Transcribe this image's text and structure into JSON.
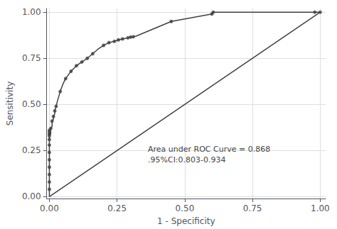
{
  "chart_data": {
    "type": "line",
    "xlabel": "1 - Specificity",
    "ylabel": "Sensitivity",
    "annotation": [
      "Area under ROC Curve = 0.868",
      ".95%CI:0.803-0.934"
    ],
    "xlim": [
      -0.01,
      1.02
    ],
    "ylim": [
      -0.01,
      1.02
    ],
    "xticks": [
      {
        "value": 0.0,
        "label": "0.00"
      },
      {
        "value": 0.25,
        "label": "0.25"
      },
      {
        "value": 0.5,
        "label": "0.50"
      },
      {
        "value": 0.75,
        "label": "0.75"
      },
      {
        "value": 1.0,
        "label": "1.00"
      }
    ],
    "yticks": [
      {
        "value": 0.0,
        "label": "0.00"
      },
      {
        "value": 0.25,
        "label": "0.25"
      },
      {
        "value": 0.5,
        "label": "0.50"
      },
      {
        "value": 0.75,
        "label": "0.75"
      },
      {
        "value": 1.0,
        "label": "1.00"
      }
    ],
    "grid": true,
    "series": [
      {
        "type": "line",
        "color": "#404040",
        "x": [
          0,
          1
        ],
        "values": [
          0,
          1
        ]
      },
      {
        "type": "line",
        "color": "#404040",
        "x": [
          0.0,
          0.0,
          0.0,
          0.0,
          0.0,
          0.0,
          0.0,
          0.0,
          0.0,
          0.0,
          0.0,
          0.0,
          0.0,
          0.0,
          0.0,
          0.0,
          0.0,
          0.0,
          0.0,
          0.0,
          0.005,
          0.005,
          0.005,
          0.005,
          0.01,
          0.01,
          0.01,
          0.015,
          0.015,
          0.02,
          0.02,
          0.025,
          0.03,
          0.035,
          0.04,
          0.05,
          0.06,
          0.07,
          0.08,
          0.1,
          0.12,
          0.14,
          0.16,
          0.18,
          0.2,
          0.22,
          0.24,
          0.255,
          0.27,
          0.28,
          0.29,
          0.295,
          0.3,
          0.31,
          0.32,
          0.45,
          0.6,
          0.605,
          0.98,
          1.0
        ],
        "values": [
          0.0,
          0.02,
          0.04,
          0.06,
          0.08,
          0.1,
          0.12,
          0.14,
          0.16,
          0.18,
          0.2,
          0.22,
          0.24,
          0.26,
          0.28,
          0.3,
          0.31,
          0.32,
          0.33,
          0.34,
          0.34,
          0.35,
          0.36,
          0.37,
          0.38,
          0.395,
          0.41,
          0.42,
          0.435,
          0.45,
          0.465,
          0.49,
          0.52,
          0.545,
          0.57,
          0.61,
          0.64,
          0.66,
          0.68,
          0.71,
          0.73,
          0.75,
          0.775,
          0.8,
          0.82,
          0.835,
          0.842,
          0.85,
          0.855,
          0.858,
          0.861,
          0.863,
          0.865,
          0.867,
          0.87,
          0.95,
          0.99,
          1.0,
          1.0,
          1.0
        ]
      },
      {
        "type": "scatter",
        "color": "#404040",
        "x": [
          0.0,
          0.0,
          0.0,
          0.0,
          0.0,
          0.0,
          0.0,
          0.0,
          0.0,
          0.0,
          0.0,
          0.0,
          0.005,
          0.01,
          0.015,
          0.02,
          0.025,
          0.04,
          0.06,
          0.08,
          0.1,
          0.12,
          0.14,
          0.16,
          0.2,
          0.22,
          0.24,
          0.255,
          0.27,
          0.29,
          0.3,
          0.31,
          0.45,
          0.6,
          0.605,
          0.98,
          1.0
        ],
        "values": [
          0.04,
          0.08,
          0.12,
          0.16,
          0.2,
          0.24,
          0.28,
          0.31,
          0.33,
          0.34,
          0.35,
          0.36,
          0.37,
          0.41,
          0.435,
          0.465,
          0.49,
          0.57,
          0.64,
          0.68,
          0.71,
          0.73,
          0.75,
          0.775,
          0.82,
          0.835,
          0.842,
          0.85,
          0.855,
          0.861,
          0.865,
          0.867,
          0.95,
          0.99,
          1.0,
          1.0,
          1.0
        ]
      }
    ]
  }
}
